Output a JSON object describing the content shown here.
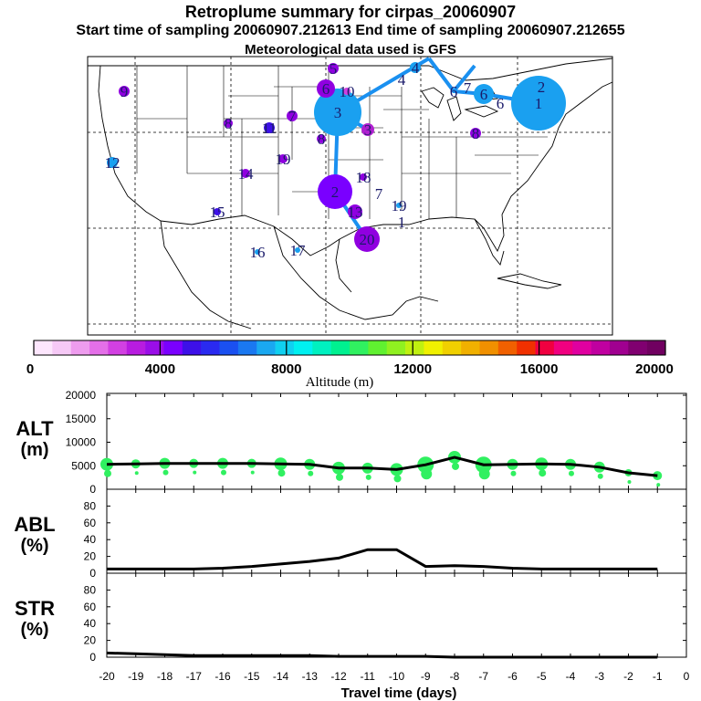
{
  "header": {
    "title": "Retroplume summary for cirpas_20060907",
    "subtitle": "Start time of sampling 20060907.212613     End time of sampling 20060907.212655",
    "met": "Meteorological data used is GFS"
  },
  "colorbar": {
    "label": "Altitude (m)",
    "ticks": [
      "0",
      "4000",
      "8000",
      "12000",
      "16000",
      "20000"
    ],
    "colors": [
      "#fde6fd",
      "#f6c9f6",
      "#ee9cee",
      "#e46fe8",
      "#d240e2",
      "#b81ce0",
      "#9a0ee8",
      "#7a00ff",
      "#3d10e8",
      "#2a2af0",
      "#1a50f0",
      "#1a78f0",
      "#1aa8f0",
      "#10d0f0",
      "#00f0f0",
      "#00f0c0",
      "#00f090",
      "#30f060",
      "#60f030",
      "#90f020",
      "#c0f010",
      "#f0f000",
      "#f0d000",
      "#f0b000",
      "#f09000",
      "#f06000",
      "#f03000",
      "#f00040",
      "#f00080",
      "#e000a0",
      "#c000a0",
      "#a00090",
      "#800070",
      "#700060"
    ]
  },
  "map": {
    "labels": [
      {
        "n": "1",
        "x": 590,
        "y": 113,
        "r": 30,
        "c": "#1aa0f0"
      },
      {
        "n": "2",
        "x": 593,
        "y": 95,
        "r": 0,
        "c": "#1aa0f0"
      },
      {
        "n": "3",
        "x": 370,
        "y": 123,
        "r": 26,
        "c": "#1aa0f0"
      },
      {
        "n": "3",
        "x": 403,
        "y": 142,
        "r": 7,
        "c": "#b020d0"
      },
      {
        "n": "4",
        "x": 455,
        "y": 74,
        "r": 6,
        "c": "#1aa0f0"
      },
      {
        "n": "4",
        "x": 440,
        "y": 87,
        "r": 0,
        "c": "#1aa0f0"
      },
      {
        "n": "5",
        "x": 365,
        "y": 75,
        "r": 6,
        "c": "#9000e0"
      },
      {
        "n": "6",
        "x": 357,
        "y": 97,
        "r": 10,
        "c": "#9000e0"
      },
      {
        "n": "6",
        "x": 530,
        "y": 103,
        "r": 11,
        "c": "#1aa0f0"
      },
      {
        "n": "6",
        "x": 548,
        "y": 113,
        "r": 0,
        "c": "#1aa0f0"
      },
      {
        "n": "6",
        "x": 497,
        "y": 100,
        "r": 0,
        "c": "#1aa0f0"
      },
      {
        "n": "7",
        "x": 512,
        "y": 96,
        "r": 0,
        "c": "#1aa0f0"
      },
      {
        "n": "8",
        "x": 521,
        "y": 146,
        "r": 6,
        "c": "#9000e0"
      },
      {
        "n": "9",
        "x": 136,
        "y": 100,
        "r": 6,
        "c": "#9000e0"
      },
      {
        "n": "10",
        "x": 380,
        "y": 100,
        "r": 4,
        "c": "#d040e0"
      },
      {
        "n": "11",
        "x": 295,
        "y": 140,
        "r": 6,
        "c": "#3d10e8"
      },
      {
        "n": "12",
        "x": 123,
        "y": 178,
        "r": 6,
        "c": "#1aa0f0"
      },
      {
        "n": "13",
        "x": 389,
        "y": 232,
        "r": 8,
        "c": "#9000e0"
      },
      {
        "n": "14",
        "x": 269,
        "y": 190,
        "r": 5,
        "c": "#9000e0"
      },
      {
        "n": "15",
        "x": 238,
        "y": 232,
        "r": 4,
        "c": "#3d10e8"
      },
      {
        "n": "16",
        "x": 282,
        "y": 276,
        "r": 3,
        "c": "#1aa0f0"
      },
      {
        "n": "17",
        "x": 326,
        "y": 274,
        "r": 3,
        "c": "#1aa0f0"
      },
      {
        "n": "18",
        "x": 398,
        "y": 194,
        "r": 4,
        "c": "#9000e0"
      },
      {
        "n": "19",
        "x": 310,
        "y": 174,
        "r": 5,
        "c": "#9000e0"
      },
      {
        "n": "19",
        "x": 437,
        "y": 225,
        "r": 3,
        "c": "#1aa0f0"
      },
      {
        "n": "20",
        "x": 402,
        "y": 262,
        "r": 14,
        "c": "#9000e0"
      },
      {
        "n": "2",
        "x": 367,
        "y": 210,
        "r": 19,
        "c": "#7a00ff"
      },
      {
        "n": "1",
        "x": 440,
        "y": 243,
        "r": 0,
        "c": "#1aa0f0"
      },
      {
        "n": "7",
        "x": 415,
        "y": 212,
        "r": 0,
        "c": "#d040e0"
      },
      {
        "n": "7",
        "x": 320,
        "y": 127,
        "r": 6,
        "c": "#9000e0"
      },
      {
        "n": "8",
        "x": 250,
        "y": 135,
        "r": 5,
        "c": "#9000e0"
      },
      {
        "n": "8",
        "x": 352,
        "y": 152,
        "r": 5,
        "c": "#9000e0"
      }
    ]
  },
  "panels": {
    "alt": {
      "label1": "ALT",
      "label2": "(m)",
      "ticks": [
        "0",
        "5000",
        "10000",
        "15000",
        "20000"
      ]
    },
    "abl": {
      "label1": "ABL",
      "label2": "(%)",
      "ticks": [
        "0",
        "20",
        "40",
        "60",
        "80"
      ]
    },
    "str": {
      "label1": "STR",
      "label2": "(%)",
      "ticks": [
        "0",
        "20",
        "40",
        "60",
        "80"
      ]
    }
  },
  "xaxis": {
    "label": "Travel time (days)",
    "ticks": [
      "-20",
      "-19",
      "-18",
      "-17",
      "-16",
      "-15",
      "-14",
      "-13",
      "-12",
      "-11",
      "-10",
      "-9",
      "-8",
      "-7",
      "-6",
      "-5",
      "-4",
      "-3",
      "-2",
      "-1",
      "0"
    ]
  },
  "chart_data": [
    {
      "type": "line",
      "title": "ALT",
      "xlabel": "Travel time (days)",
      "ylabel": "ALT (m)",
      "ylim": [
        0,
        20000
      ],
      "x": [
        -20,
        -19,
        -18,
        -17,
        -16,
        -15,
        -14,
        -13,
        -12,
        -11,
        -10,
        -9,
        -8,
        -7,
        -6,
        -5,
        -4,
        -3,
        -2,
        -1
      ],
      "values": [
        5300,
        5400,
        5500,
        5500,
        5500,
        5500,
        5400,
        5300,
        4500,
        4500,
        4200,
        5200,
        6800,
        5200,
        5300,
        5400,
        5300,
        4700,
        3500,
        2900
      ],
      "point_color": "#30f060"
    },
    {
      "type": "line",
      "title": "ABL",
      "xlabel": "Travel time (days)",
      "ylabel": "ABL (%)",
      "ylim": [
        0,
        100
      ],
      "x": [
        -20,
        -19,
        -18,
        -17,
        -16,
        -15,
        -14,
        -13,
        -12,
        -11,
        -10,
        -9,
        -8,
        -7,
        -6,
        -5,
        -4,
        -3,
        -2,
        -1
      ],
      "values": [
        5,
        5,
        5,
        5,
        6,
        8,
        11,
        14,
        18,
        28,
        28,
        8,
        9,
        8,
        6,
        5,
        5,
        5,
        5,
        5
      ]
    },
    {
      "type": "line",
      "title": "STR",
      "xlabel": "Travel time (days)",
      "ylabel": "STR (%)",
      "ylim": [
        0,
        100
      ],
      "x": [
        -20,
        -19,
        -18,
        -17,
        -16,
        -15,
        -14,
        -13,
        -12,
        -11,
        -10,
        -9,
        -8,
        -7,
        -6,
        -5,
        -4,
        -3,
        -2,
        -1
      ],
      "values": [
        5,
        4,
        3,
        2,
        2,
        2,
        2,
        2,
        1,
        1,
        1,
        1,
        0,
        0,
        0,
        0,
        0,
        0,
        0,
        0
      ]
    }
  ]
}
